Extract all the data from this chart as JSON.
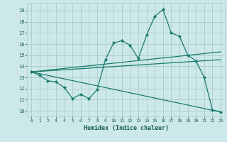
{
  "xlabel": "Humidex (Indice chaleur)",
  "ylabel": "",
  "bg_color": "#cce8e8",
  "grid_color": "#aacccc",
  "line_color": "#1a7a6e",
  "xlim": [
    -0.5,
    23.5
  ],
  "ylim": [
    9.5,
    19.7
  ],
  "xticks": [
    0,
    1,
    2,
    3,
    4,
    5,
    6,
    7,
    8,
    9,
    10,
    11,
    12,
    13,
    14,
    15,
    16,
    17,
    18,
    19,
    20,
    21,
    22,
    23
  ],
  "yticks": [
    10,
    11,
    12,
    13,
    14,
    15,
    16,
    17,
    18,
    19
  ],
  "main_curve_x": [
    0,
    1,
    2,
    3,
    4,
    5,
    6,
    7,
    8,
    9,
    10,
    11,
    12,
    13,
    14,
    15,
    16,
    17,
    18,
    19,
    20,
    21,
    22,
    23
  ],
  "main_curve_y": [
    13.5,
    13.2,
    12.7,
    12.6,
    12.1,
    11.1,
    11.5,
    11.1,
    11.9,
    14.6,
    16.1,
    16.3,
    15.9,
    14.7,
    16.8,
    18.5,
    19.1,
    17.0,
    16.7,
    15.0,
    14.5,
    13.0,
    10.1,
    9.9
  ],
  "line1_x": [
    0,
    23
  ],
  "line1_y": [
    13.5,
    15.3
  ],
  "line2_x": [
    0,
    23
  ],
  "line2_y": [
    13.5,
    14.6
  ],
  "line3_x": [
    0,
    23
  ],
  "line3_y": [
    13.5,
    9.9
  ]
}
